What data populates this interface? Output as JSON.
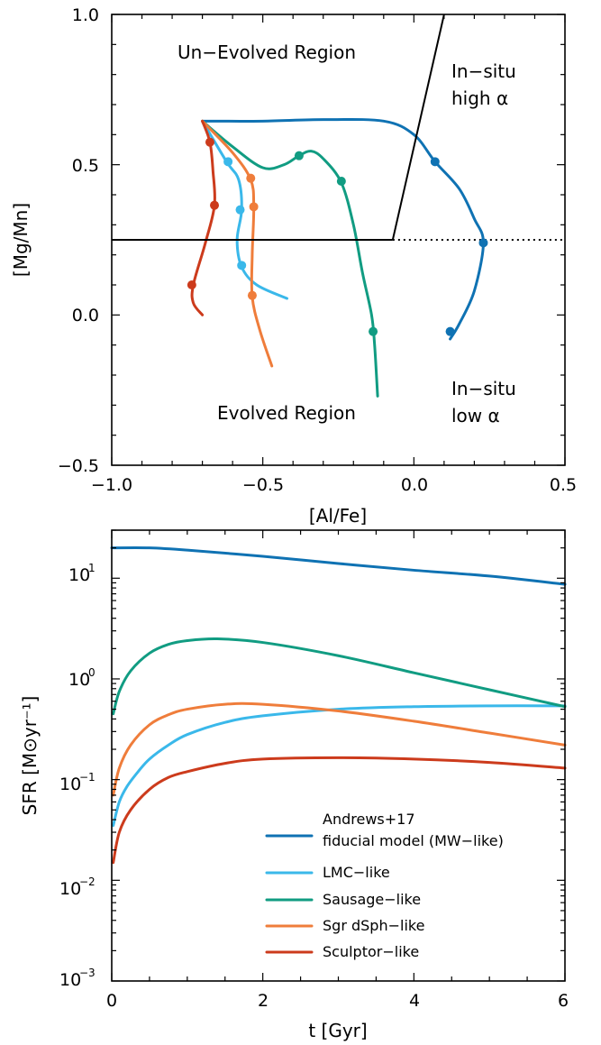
{
  "colors": {
    "mw": "#0f72b3",
    "lmc": "#3ab8ea",
    "sausage": "#119c82",
    "sgr": "#ef7d3b",
    "sculptor": "#cc3b1c"
  },
  "chart_data": [
    {
      "type": "line",
      "xlabel": "[Al/Fe]",
      "ylabel": "[Mg/Mn]",
      "xlim": [
        -1.0,
        0.5
      ],
      "ylim": [
        -0.5,
        1.0
      ],
      "xticks": [
        "−1.0",
        "−0.5",
        "0.0",
        "0.5"
      ],
      "yticks": [
        "−0.5",
        "0.0",
        "0.5",
        "1.0"
      ],
      "annotations": {
        "unevolved": "Un−Evolved Region",
        "evolved": "Evolved Region",
        "insitu_high_l1": "In−situ",
        "insitu_high_l2": "high α",
        "insitu_low_l1": "In−situ",
        "insitu_low_l2": "low α"
      },
      "boundary": {
        "solid_line": [
          [
            -1.0,
            0.25
          ],
          [
            -0.07,
            0.25
          ]
        ],
        "diagonal_line": [
          [
            -0.07,
            0.25
          ],
          [
            0.1,
            1.0
          ]
        ],
        "dotted_line": [
          [
            -0.07,
            0.25
          ],
          [
            0.5,
            0.25
          ]
        ]
      },
      "series": [
        {
          "key": "mw",
          "x": [
            -0.7,
            -0.5,
            -0.3,
            -0.1,
            0.0,
            0.07,
            0.15,
            0.2,
            0.23,
            0.2,
            0.15,
            0.12
          ],
          "y": [
            0.645,
            0.645,
            0.65,
            0.645,
            0.6,
            0.51,
            0.42,
            0.32,
            0.24,
            0.08,
            -0.03,
            -0.08
          ],
          "markers_x": [
            0.07,
            0.23,
            0.12
          ],
          "markers_y": [
            0.51,
            0.24,
            -0.055
          ]
        },
        {
          "key": "sausage",
          "x": [
            -0.7,
            -0.6,
            -0.5,
            -0.43,
            -0.38,
            -0.34,
            -0.3,
            -0.24,
            -0.2,
            -0.17,
            -0.14,
            -0.13,
            -0.12
          ],
          "y": [
            0.645,
            0.56,
            0.49,
            0.5,
            0.53,
            0.545,
            0.52,
            0.44,
            0.3,
            0.14,
            0.0,
            -0.1,
            -0.27
          ],
          "markers_x": [
            -0.38,
            -0.24,
            -0.135
          ],
          "markers_y": [
            0.53,
            0.445,
            -0.055
          ]
        },
        {
          "key": "lmc",
          "x": [
            -0.7,
            -0.62,
            -0.58,
            -0.57,
            -0.585,
            -0.57,
            -0.52,
            -0.42
          ],
          "y": [
            0.645,
            0.51,
            0.45,
            0.35,
            0.25,
            0.16,
            0.1,
            0.055
          ],
          "markers_x": [
            -0.615,
            -0.575,
            -0.57
          ],
          "markers_y": [
            0.51,
            0.35,
            0.165
          ]
        },
        {
          "key": "sgr",
          "x": [
            -0.7,
            -0.6,
            -0.54,
            -0.53,
            -0.535,
            -0.535,
            -0.51,
            -0.47
          ],
          "y": [
            0.645,
            0.54,
            0.45,
            0.36,
            0.2,
            0.06,
            -0.05,
            -0.17
          ],
          "markers_x": [
            -0.54,
            -0.53,
            -0.535
          ],
          "markers_y": [
            0.455,
            0.36,
            0.065
          ]
        },
        {
          "key": "sculptor",
          "x": [
            -0.7,
            -0.675,
            -0.665,
            -0.66,
            -0.69,
            -0.73,
            -0.73,
            -0.7
          ],
          "y": [
            0.645,
            0.575,
            0.48,
            0.365,
            0.24,
            0.1,
            0.04,
            0.0
          ],
          "markers_x": [
            -0.675,
            -0.66,
            -0.735
          ],
          "markers_y": [
            0.575,
            0.365,
            0.1
          ]
        }
      ]
    },
    {
      "type": "line",
      "xlabel": "t [Gyr]",
      "ylabel": "SFR [M⊙yr⁻¹]",
      "xlim": [
        0,
        6
      ],
      "ylim": [
        0.001,
        30
      ],
      "yscale": "log",
      "xticks": [
        "0",
        "2",
        "4",
        "6"
      ],
      "legend": "lower-right",
      "series": [
        {
          "key": "mw",
          "name_l1": "Andrews+17",
          "name_l2": "fiducial model (MW−like)",
          "x": [
            0,
            0.5,
            1,
            2,
            3,
            4,
            5,
            6
          ],
          "y": [
            20,
            20,
            19,
            16.5,
            14,
            12,
            10.5,
            8.7
          ]
        },
        {
          "key": "lmc",
          "name": "LMC−like",
          "x": [
            0.02,
            0.1,
            0.2,
            0.35,
            0.5,
            0.75,
            1,
            1.5,
            2,
            3,
            4,
            5,
            6
          ],
          "y": [
            0.035,
            0.06,
            0.085,
            0.12,
            0.16,
            0.22,
            0.28,
            0.37,
            0.43,
            0.5,
            0.53,
            0.54,
            0.54
          ]
        },
        {
          "key": "sausage",
          "name": "Sausage−like",
          "x": [
            0.02,
            0.1,
            0.25,
            0.5,
            0.75,
            1,
            1.4,
            2,
            3,
            4,
            5,
            6
          ],
          "y": [
            0.45,
            0.75,
            1.2,
            1.8,
            2.2,
            2.4,
            2.5,
            2.3,
            1.7,
            1.15,
            0.78,
            0.53
          ]
        },
        {
          "key": "sgr",
          "name": "Sgr dSph−like",
          "x": [
            0.02,
            0.1,
            0.25,
            0.5,
            0.75,
            1,
            1.5,
            2,
            3,
            4,
            5,
            6
          ],
          "y": [
            0.07,
            0.13,
            0.22,
            0.35,
            0.44,
            0.5,
            0.56,
            0.56,
            0.48,
            0.38,
            0.29,
            0.22
          ]
        },
        {
          "key": "sculptor",
          "name": "Sculptor−like",
          "x": [
            0.02,
            0.1,
            0.25,
            0.5,
            0.75,
            1,
            1.5,
            2,
            3,
            4,
            5,
            6
          ],
          "y": [
            0.015,
            0.03,
            0.05,
            0.08,
            0.105,
            0.12,
            0.145,
            0.16,
            0.165,
            0.16,
            0.148,
            0.13
          ]
        }
      ]
    }
  ]
}
